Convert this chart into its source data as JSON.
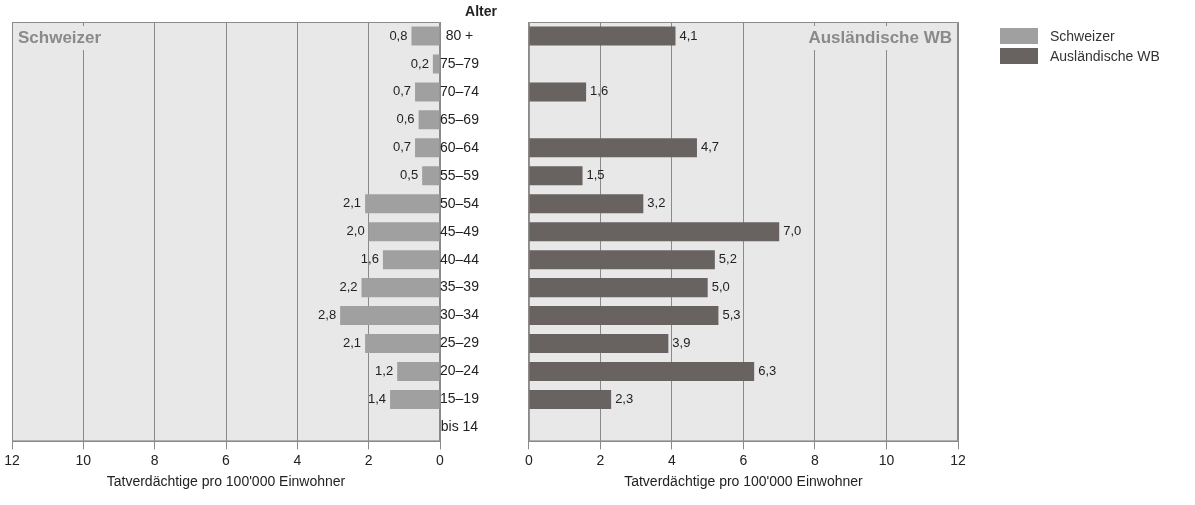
{
  "chart_data": [
    {
      "type": "bar",
      "orientation": "horizontal",
      "title": "Schweizer",
      "ylabel": "Alter",
      "xlabel": "Tatverdächtige pro 100'000 Einwohner",
      "categories": [
        "80 +",
        "75–79",
        "70–74",
        "65–69",
        "60–64",
        "55–59",
        "50–54",
        "45–49",
        "40–44",
        "35–39",
        "30–34",
        "25–29",
        "20–24",
        "15–19",
        "bis 14"
      ],
      "series": [
        {
          "name": "Schweizer",
          "color": "#a0a0a0",
          "values": [
            0.8,
            0.2,
            0.7,
            0.6,
            0.7,
            0.5,
            2.1,
            2.0,
            1.6,
            2.2,
            2.8,
            2.1,
            1.2,
            1.4,
            null
          ],
          "value_labels": [
            "0,8",
            "0,2",
            "0,7",
            "0,6",
            "0,7",
            "0,5",
            "2,1",
            "2,0",
            "1,6",
            "2,2",
            "2,8",
            "2,1",
            "1,2",
            "1,4",
            null
          ]
        }
      ],
      "xlim": [
        12,
        0
      ],
      "xticks": [
        0,
        2,
        4,
        6,
        8,
        10,
        12
      ],
      "grid": "x",
      "legend": "right"
    },
    {
      "type": "bar",
      "orientation": "horizontal",
      "title": "Ausländische WB",
      "xlabel": "Tatverdächtige pro 100'000 Einwohner",
      "categories": [
        null,
        null,
        null,
        null,
        null,
        null,
        null,
        null,
        null,
        null,
        null,
        null,
        null,
        null,
        null
      ],
      "series": [
        {
          "name": "Ausländische WB",
          "color": "#686260",
          "values": [
            4.1,
            null,
            1.6,
            null,
            4.7,
            1.5,
            3.2,
            7.0,
            5.2,
            5.0,
            5.3,
            3.9,
            6.3,
            2.3,
            null
          ],
          "value_labels": [
            "4,1",
            null,
            "1,6",
            null,
            "4,7",
            "1,5",
            "3,2",
            "7,0",
            "5,2",
            "5,0",
            "5,3",
            "3,9",
            "6,3",
            "2,3",
            null
          ]
        }
      ],
      "xlim": [
        0,
        12
      ],
      "xticks": [
        0,
        2,
        4,
        6,
        8,
        10,
        12
      ],
      "grid": "x",
      "tick_labels": "x",
      "legend": "right"
    }
  ]
}
